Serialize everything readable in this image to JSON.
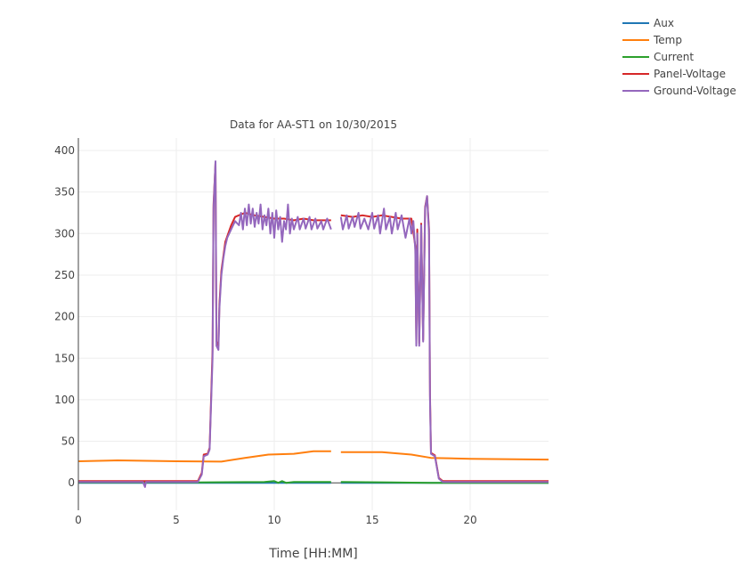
{
  "chart_data": {
    "type": "line",
    "title": "Data for AA-ST1 on 10/30/2015",
    "xlabel": "Time [HH:MM]",
    "ylabel": "",
    "xlim": [
      0,
      24
    ],
    "ylim": [
      -33,
      415
    ],
    "xticks": [
      0,
      5,
      10,
      15,
      20
    ],
    "yticks": [
      0,
      50,
      100,
      150,
      200,
      250,
      300,
      350,
      400
    ],
    "grid": true,
    "legend": "top-right",
    "series": [
      {
        "name": "Aux",
        "color": "#1f77b4",
        "x": [
          0,
          12.9,
          null,
          13.4,
          24
        ],
        "y": [
          0,
          0,
          null,
          0,
          0
        ]
      },
      {
        "name": "Temp",
        "color": "#ff7f0e",
        "x": [
          0,
          2,
          5,
          7.3,
          8.5,
          9.7,
          11,
          12,
          12.9,
          null,
          13.4,
          15.5,
          17,
          18,
          20,
          24
        ],
        "y": [
          26,
          27,
          26,
          25.5,
          30,
          34,
          35,
          38,
          38,
          null,
          37,
          37,
          34,
          30,
          29,
          28
        ]
      },
      {
        "name": "Current",
        "color": "#2ca02c",
        "x": [
          0,
          6,
          9.5,
          10,
          10.2,
          10.4,
          10.6,
          11,
          12.9,
          null,
          13.4,
          16,
          18,
          24
        ],
        "y": [
          0.5,
          0.5,
          1,
          2,
          0,
          2,
          0,
          1,
          1,
          null,
          1,
          0.5,
          0,
          0
        ]
      },
      {
        "name": "Panel-Voltage",
        "color": "#d62728",
        "x": [
          0,
          6.1,
          6.3,
          6.4,
          6.6,
          6.7,
          6.85,
          6.9,
          7.0,
          7.05,
          7.15,
          7.2,
          7.3,
          7.5,
          7.8,
          8.0,
          8.5,
          9,
          9.5,
          10,
          10.5,
          11,
          11.5,
          12,
          12.5,
          12.9,
          null,
          13.4,
          14,
          14.5,
          15,
          15.5,
          16,
          16.5,
          17,
          17.2,
          17.25,
          17.3,
          17.4,
          17.5,
          17.6,
          17.7,
          17.8,
          17.9,
          17.95,
          18.0,
          18.2,
          18.4,
          18.6,
          24
        ],
        "y": [
          2,
          2,
          12,
          34,
          35,
          42,
          160,
          335,
          385,
          170,
          165,
          215,
          255,
          290,
          310,
          320,
          325,
          322,
          320,
          318,
          318,
          316,
          318,
          316,
          316,
          316,
          null,
          322,
          320,
          322,
          320,
          322,
          320,
          318,
          318,
          285,
          170,
          305,
          168,
          312,
          172,
          332,
          345,
          305,
          105,
          36,
          33,
          6,
          2,
          2
        ]
      },
      {
        "name": "Ground-Voltage",
        "color": "#9467bd",
        "x": [
          0,
          3.3,
          3.4,
          3.45,
          6.1,
          6.3,
          6.4,
          6.6,
          6.7,
          6.85,
          6.9,
          7.0,
          7.05,
          7.15,
          7.2,
          7.3,
          7.4,
          7.5,
          7.6,
          7.8,
          8.0,
          8.2,
          8.3,
          8.4,
          8.5,
          8.6,
          8.7,
          8.8,
          8.9,
          9.0,
          9.1,
          9.2,
          9.3,
          9.4,
          9.5,
          9.6,
          9.7,
          9.8,
          9.9,
          10.0,
          10.1,
          10.2,
          10.3,
          10.4,
          10.5,
          10.6,
          10.7,
          10.8,
          10.9,
          11.0,
          11.2,
          11.3,
          11.5,
          11.6,
          11.8,
          11.9,
          12.1,
          12.2,
          12.4,
          12.5,
          12.7,
          12.9,
          null,
          13.4,
          13.5,
          13.7,
          13.8,
          14.0,
          14.1,
          14.3,
          14.4,
          14.6,
          14.8,
          15.0,
          15.1,
          15.3,
          15.4,
          15.6,
          15.7,
          15.9,
          16.0,
          16.2,
          16.3,
          16.5,
          16.7,
          16.9,
          17.0,
          17.1,
          17.2,
          17.25,
          17.3,
          17.4,
          17.5,
          17.6,
          17.7,
          17.8,
          17.9,
          17.95,
          18.0,
          18.2,
          18.4,
          18.6,
          24
        ],
        "y": [
          1,
          1,
          -5,
          1,
          1,
          10,
          32,
          34,
          40,
          150,
          330,
          387,
          165,
          160,
          210,
          250,
          270,
          285,
          295,
          305,
          315,
          310,
          325,
          305,
          330,
          310,
          335,
          312,
          330,
          308,
          325,
          312,
          335,
          305,
          322,
          310,
          330,
          300,
          325,
          295,
          328,
          305,
          320,
          290,
          315,
          305,
          335,
          300,
          318,
          305,
          320,
          305,
          318,
          306,
          320,
          305,
          318,
          306,
          315,
          305,
          318,
          305,
          null,
          320,
          305,
          322,
          306,
          320,
          308,
          325,
          306,
          318,
          305,
          325,
          306,
          322,
          300,
          330,
          305,
          320,
          300,
          325,
          305,
          322,
          295,
          318,
          300,
          315,
          280,
          165,
          300,
          165,
          310,
          170,
          330,
          345,
          300,
          100,
          35,
          32,
          5,
          1,
          1
        ]
      }
    ]
  }
}
